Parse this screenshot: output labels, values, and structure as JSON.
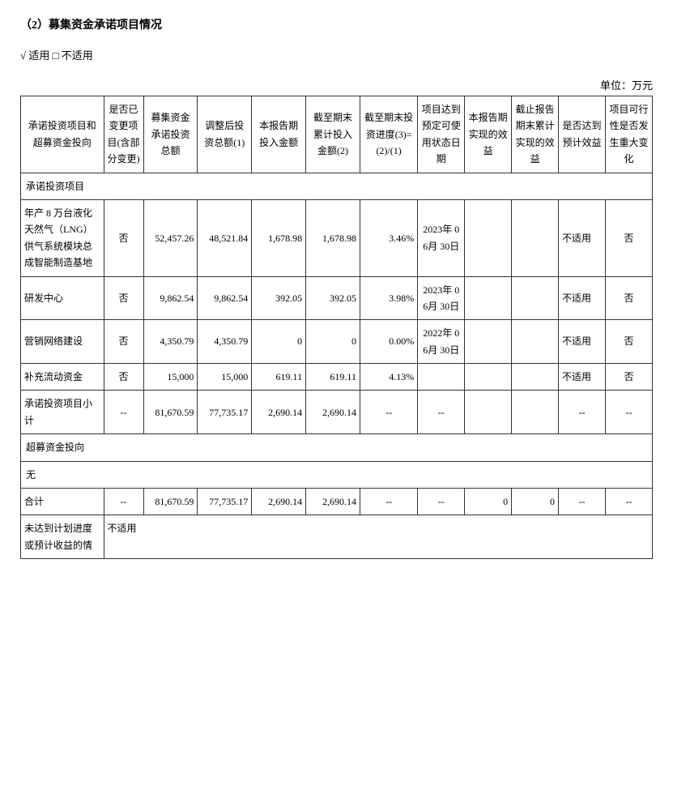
{
  "section_title": "（2）募集资金承诺项目情况",
  "applicable_line": "√ 适用 □ 不适用",
  "unit_label": "单位：万元",
  "table": {
    "columns": [
      "承诺投资项目和超募资金投向",
      "是否已变更项目(含部分变更)",
      "募集资金承诺投资总额",
      "调整后投资总额(1)",
      "本报告期投入金额",
      "截至期末累计投入金额(2)",
      "截至期末投资进度(3)=(2)/(1)",
      "项目达到预定可使用状态日期",
      "本报告期实现的效益",
      "截止报告期末累计实现的效益",
      "是否达到预计效益",
      "项目可行性是否发生重大变化"
    ],
    "section1_label": "承诺投资项目",
    "rows": [
      {
        "proj": "年产 8 万台液化天然气（LNG）供气系统模块总成智能制造基地",
        "changed": "否",
        "commit": "52,457.26",
        "adj": "48,521.84",
        "curr": "1,678.98",
        "cum": "1,678.98",
        "prog": "3.46%",
        "ready": "2023年 06月 30日",
        "ben1": "",
        "ben2": "",
        "target": "不适用",
        "feas": "否"
      },
      {
        "proj": "研发中心",
        "changed": "否",
        "commit": "9,862.54",
        "adj": "9,862.54",
        "curr": "392.05",
        "cum": "392.05",
        "prog": "3.98%",
        "ready": "2023年 06月 30日",
        "ben1": "",
        "ben2": "",
        "target": "不适用",
        "feas": "否"
      },
      {
        "proj": "营销网络建设",
        "changed": "否",
        "commit": "4,350.79",
        "adj": "4,350.79",
        "curr": "0",
        "cum": "0",
        "prog": "0.00%",
        "ready": "2022年 06月 30日",
        "ben1": "",
        "ben2": "",
        "target": "不适用",
        "feas": "否"
      },
      {
        "proj": "补充流动资金",
        "changed": "否",
        "commit": "15,000",
        "adj": "15,000",
        "curr": "619.11",
        "cum": "619.11",
        "prog": "4.13%",
        "ready": "",
        "ben1": "",
        "ben2": "",
        "target": "不适用",
        "feas": "否"
      }
    ],
    "subtotal": {
      "proj": "承诺投资项目小计",
      "changed": "--",
      "commit": "81,670.59",
      "adj": "77,735.17",
      "curr": "2,690.14",
      "cum": "2,690.14",
      "prog": "--",
      "ready": "--",
      "ben1": "",
      "ben2": "",
      "target": "--",
      "feas": "--"
    },
    "section2_label": "超募资金投向",
    "none_label": "无",
    "total": {
      "proj": "合计",
      "changed": "--",
      "commit": "81,670.59",
      "adj": "77,735.17",
      "curr": "2,690.14",
      "cum": "2,690.14",
      "prog": "--",
      "ready": "--",
      "ben1": "0",
      "ben2": "0",
      "target": "--",
      "feas": "--"
    },
    "footer_row": {
      "label": "未达到计划进度或预计收益的情",
      "value": "不适用"
    }
  }
}
